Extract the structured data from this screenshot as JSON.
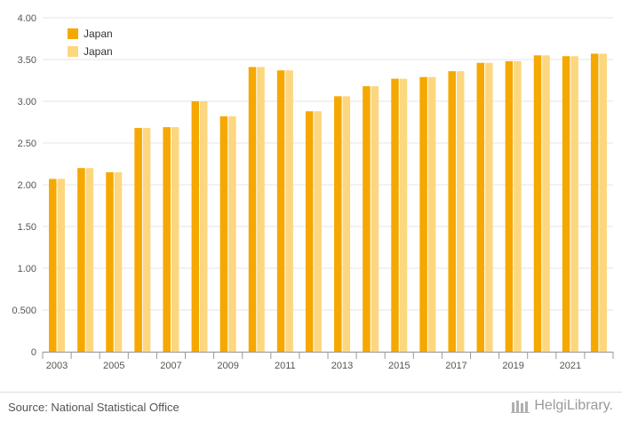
{
  "chart_data": {
    "type": "bar",
    "categories": [
      "2003",
      "2004",
      "2005",
      "2006",
      "2007",
      "2008",
      "2009",
      "2010",
      "2011",
      "2012",
      "2013",
      "2014",
      "2015",
      "2016",
      "2017",
      "2018",
      "2019",
      "2020",
      "2021",
      "2022"
    ],
    "series": [
      {
        "name": "Japan",
        "color": "#f5a800",
        "values": [
          2.07,
          2.2,
          2.15,
          2.68,
          2.69,
          3.0,
          2.82,
          3.41,
          3.37,
          2.88,
          3.06,
          3.18,
          3.27,
          3.29,
          3.36,
          3.46,
          3.48,
          3.55,
          3.54,
          3.57
        ]
      },
      {
        "name": "Japan",
        "color": "#fcd77f",
        "values": [
          2.07,
          2.2,
          2.15,
          2.68,
          2.69,
          3.0,
          2.82,
          3.41,
          3.37,
          2.88,
          3.06,
          3.18,
          3.27,
          3.29,
          3.36,
          3.46,
          3.48,
          3.55,
          3.54,
          3.57
        ]
      }
    ],
    "x_tick_labels": [
      "2003",
      "2005",
      "2007",
      "2009",
      "2011",
      "2013",
      "2015",
      "2017",
      "2019",
      "2021"
    ],
    "y_ticks": [
      0,
      0.5,
      1.0,
      1.5,
      2.0,
      2.5,
      3.0,
      3.5,
      4.0
    ],
    "y_tick_labels": [
      "0",
      "0.500",
      "1.00",
      "1.50",
      "2.00",
      "2.50",
      "3.00",
      "3.50",
      "4.00"
    ],
    "ylim": [
      0,
      4.0
    ],
    "grid": true,
    "legend_position": "top-left"
  },
  "footer": {
    "source": "Source: National Statistical Office",
    "logo_text": "HelgiLibrary."
  }
}
